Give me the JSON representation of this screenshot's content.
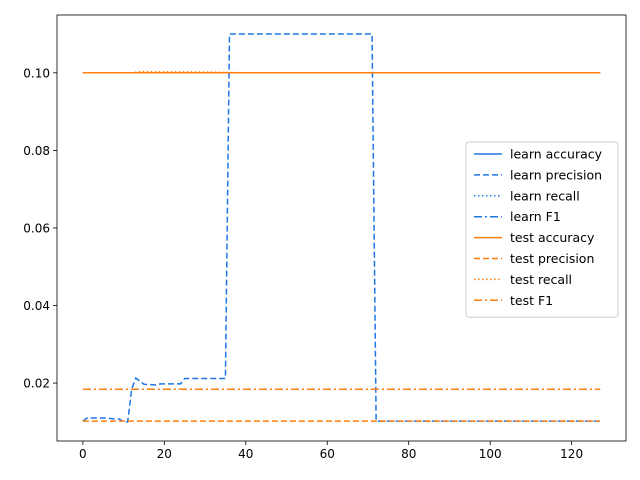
{
  "chart_data": {
    "type": "line",
    "title": "",
    "xlabel": "",
    "ylabel": "",
    "xlim": [
      -6.35,
      133.35
    ],
    "ylim": [
      0.00507,
      0.1149
    ],
    "xticks": [
      0,
      20,
      40,
      60,
      80,
      100,
      120
    ],
    "yticks": [
      0.02,
      0.04,
      0.06,
      0.08,
      0.1
    ],
    "ytick_labels": [
      "0.02",
      "0.04",
      "0.06",
      "0.08",
      "0.10"
    ],
    "grid": false,
    "legend_position": "center-right",
    "colors": {
      "learn": "#1f77e6",
      "test": "#ff7f0e"
    },
    "series": [
      {
        "name": "learn accuracy",
        "color": "#1f77e6",
        "linestyle": "solid",
        "x": [
          0,
          127
        ],
        "y": [
          0.1,
          0.1
        ]
      },
      {
        "name": "learn precision",
        "color": "#1f77e6",
        "linestyle": "dashed",
        "x": [
          0,
          1,
          2,
          6,
          8,
          9,
          10,
          11,
          12,
          13,
          14,
          15,
          18,
          19,
          20,
          24,
          25,
          26,
          34,
          35,
          36,
          37,
          70,
          71,
          72,
          127
        ],
        "y": [
          0.0102,
          0.011,
          0.011,
          0.011,
          0.0107,
          0.0107,
          0.01,
          0.01,
          0.0185,
          0.0213,
          0.0205,
          0.0197,
          0.0195,
          0.0198,
          0.0198,
          0.0198,
          0.0212,
          0.0212,
          0.0212,
          0.0212,
          0.11,
          0.11,
          0.11,
          0.11,
          0.0102,
          0.0102
        ]
      },
      {
        "name": "learn recall",
        "color": "#1f77e6",
        "linestyle": "dotted",
        "x": [
          0,
          127
        ],
        "y": [
          0.1,
          0.1
        ]
      },
      {
        "name": "learn F1",
        "color": "#1f77e6",
        "linestyle": "dashdot",
        "x": [
          0,
          127
        ],
        "y": [
          0.0184,
          0.0184
        ]
      },
      {
        "name": "test accuracy",
        "color": "#ff7f0e",
        "linestyle": "solid",
        "x": [
          0,
          127
        ],
        "y": [
          0.1,
          0.1
        ]
      },
      {
        "name": "test precision",
        "color": "#ff7f0e",
        "linestyle": "dashed",
        "x": [
          0,
          127
        ],
        "y": [
          0.0102,
          0.0102
        ]
      },
      {
        "name": "test recall",
        "color": "#ff7f0e",
        "linestyle": "dotted",
        "x": [
          0,
          12,
          14,
          30,
          40,
          127
        ],
        "y": [
          0.1,
          0.1,
          0.1003,
          0.1002,
          0.1,
          0.1
        ]
      },
      {
        "name": "test F1",
        "color": "#ff7f0e",
        "linestyle": "dashdot",
        "x": [
          0,
          127
        ],
        "y": [
          0.0184,
          0.0184
        ]
      }
    ]
  }
}
